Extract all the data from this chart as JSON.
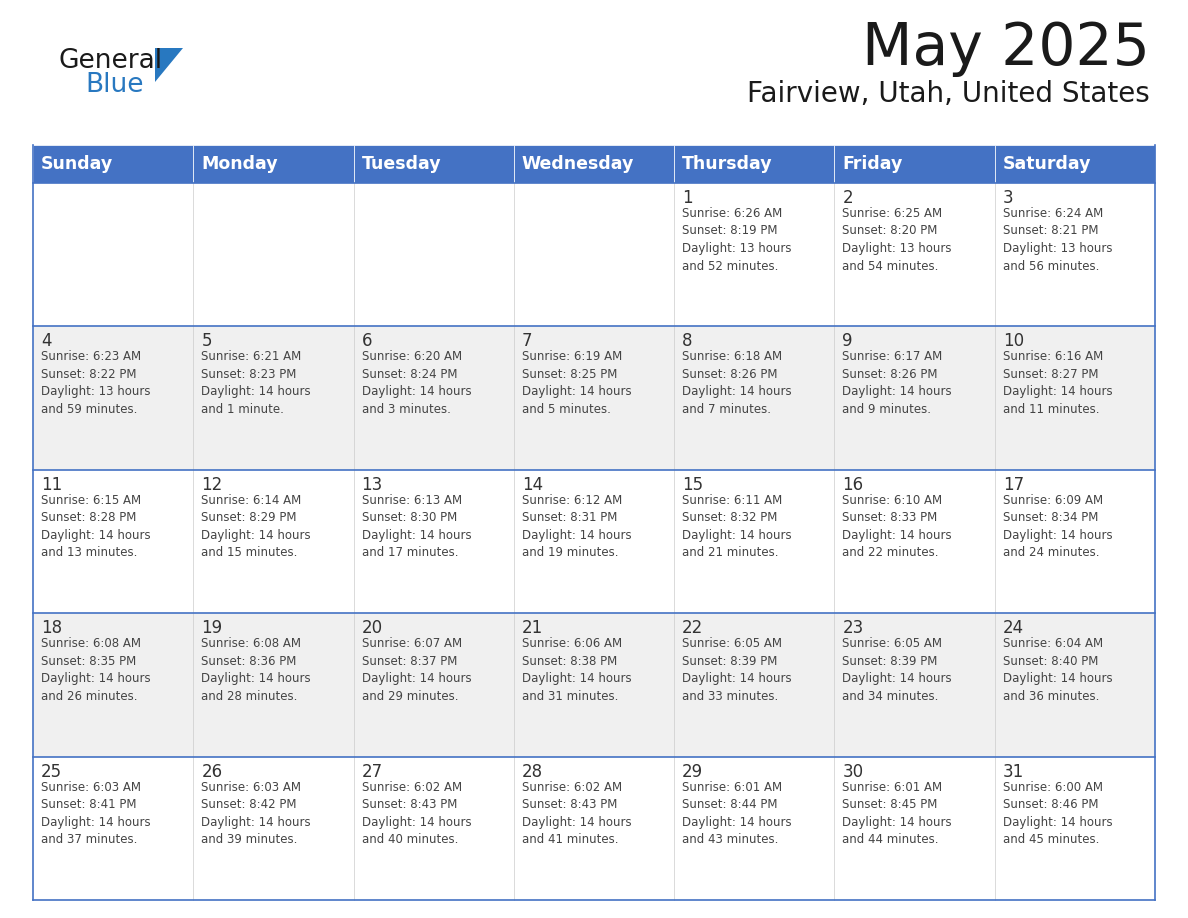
{
  "title": "May 2025",
  "subtitle": "Fairview, Utah, United States",
  "header_bg": "#4472C4",
  "header_text_color": "#FFFFFF",
  "cell_bg_white": "#FFFFFF",
  "cell_bg_gray": "#F0F0F0",
  "day_number_color": "#333333",
  "cell_text_color": "#444444",
  "border_color": "#4472C4",
  "row_divider_color": "#4472C4",
  "days_of_week": [
    "Sunday",
    "Monday",
    "Tuesday",
    "Wednesday",
    "Thursday",
    "Friday",
    "Saturday"
  ],
  "weeks": [
    [
      {
        "day": "",
        "info": ""
      },
      {
        "day": "",
        "info": ""
      },
      {
        "day": "",
        "info": ""
      },
      {
        "day": "",
        "info": ""
      },
      {
        "day": "1",
        "info": "Sunrise: 6:26 AM\nSunset: 8:19 PM\nDaylight: 13 hours\nand 52 minutes."
      },
      {
        "day": "2",
        "info": "Sunrise: 6:25 AM\nSunset: 8:20 PM\nDaylight: 13 hours\nand 54 minutes."
      },
      {
        "day": "3",
        "info": "Sunrise: 6:24 AM\nSunset: 8:21 PM\nDaylight: 13 hours\nand 56 minutes."
      }
    ],
    [
      {
        "day": "4",
        "info": "Sunrise: 6:23 AM\nSunset: 8:22 PM\nDaylight: 13 hours\nand 59 minutes."
      },
      {
        "day": "5",
        "info": "Sunrise: 6:21 AM\nSunset: 8:23 PM\nDaylight: 14 hours\nand 1 minute."
      },
      {
        "day": "6",
        "info": "Sunrise: 6:20 AM\nSunset: 8:24 PM\nDaylight: 14 hours\nand 3 minutes."
      },
      {
        "day": "7",
        "info": "Sunrise: 6:19 AM\nSunset: 8:25 PM\nDaylight: 14 hours\nand 5 minutes."
      },
      {
        "day": "8",
        "info": "Sunrise: 6:18 AM\nSunset: 8:26 PM\nDaylight: 14 hours\nand 7 minutes."
      },
      {
        "day": "9",
        "info": "Sunrise: 6:17 AM\nSunset: 8:26 PM\nDaylight: 14 hours\nand 9 minutes."
      },
      {
        "day": "10",
        "info": "Sunrise: 6:16 AM\nSunset: 8:27 PM\nDaylight: 14 hours\nand 11 minutes."
      }
    ],
    [
      {
        "day": "11",
        "info": "Sunrise: 6:15 AM\nSunset: 8:28 PM\nDaylight: 14 hours\nand 13 minutes."
      },
      {
        "day": "12",
        "info": "Sunrise: 6:14 AM\nSunset: 8:29 PM\nDaylight: 14 hours\nand 15 minutes."
      },
      {
        "day": "13",
        "info": "Sunrise: 6:13 AM\nSunset: 8:30 PM\nDaylight: 14 hours\nand 17 minutes."
      },
      {
        "day": "14",
        "info": "Sunrise: 6:12 AM\nSunset: 8:31 PM\nDaylight: 14 hours\nand 19 minutes."
      },
      {
        "day": "15",
        "info": "Sunrise: 6:11 AM\nSunset: 8:32 PM\nDaylight: 14 hours\nand 21 minutes."
      },
      {
        "day": "16",
        "info": "Sunrise: 6:10 AM\nSunset: 8:33 PM\nDaylight: 14 hours\nand 22 minutes."
      },
      {
        "day": "17",
        "info": "Sunrise: 6:09 AM\nSunset: 8:34 PM\nDaylight: 14 hours\nand 24 minutes."
      }
    ],
    [
      {
        "day": "18",
        "info": "Sunrise: 6:08 AM\nSunset: 8:35 PM\nDaylight: 14 hours\nand 26 minutes."
      },
      {
        "day": "19",
        "info": "Sunrise: 6:08 AM\nSunset: 8:36 PM\nDaylight: 14 hours\nand 28 minutes."
      },
      {
        "day": "20",
        "info": "Sunrise: 6:07 AM\nSunset: 8:37 PM\nDaylight: 14 hours\nand 29 minutes."
      },
      {
        "day": "21",
        "info": "Sunrise: 6:06 AM\nSunset: 8:38 PM\nDaylight: 14 hours\nand 31 minutes."
      },
      {
        "day": "22",
        "info": "Sunrise: 6:05 AM\nSunset: 8:39 PM\nDaylight: 14 hours\nand 33 minutes."
      },
      {
        "day": "23",
        "info": "Sunrise: 6:05 AM\nSunset: 8:39 PM\nDaylight: 14 hours\nand 34 minutes."
      },
      {
        "day": "24",
        "info": "Sunrise: 6:04 AM\nSunset: 8:40 PM\nDaylight: 14 hours\nand 36 minutes."
      }
    ],
    [
      {
        "day": "25",
        "info": "Sunrise: 6:03 AM\nSunset: 8:41 PM\nDaylight: 14 hours\nand 37 minutes."
      },
      {
        "day": "26",
        "info": "Sunrise: 6:03 AM\nSunset: 8:42 PM\nDaylight: 14 hours\nand 39 minutes."
      },
      {
        "day": "27",
        "info": "Sunrise: 6:02 AM\nSunset: 8:43 PM\nDaylight: 14 hours\nand 40 minutes."
      },
      {
        "day": "28",
        "info": "Sunrise: 6:02 AM\nSunset: 8:43 PM\nDaylight: 14 hours\nand 41 minutes."
      },
      {
        "day": "29",
        "info": "Sunrise: 6:01 AM\nSunset: 8:44 PM\nDaylight: 14 hours\nand 43 minutes."
      },
      {
        "day": "30",
        "info": "Sunrise: 6:01 AM\nSunset: 8:45 PM\nDaylight: 14 hours\nand 44 minutes."
      },
      {
        "day": "31",
        "info": "Sunrise: 6:00 AM\nSunset: 8:46 PM\nDaylight: 14 hours\nand 45 minutes."
      }
    ]
  ],
  "logo_general_color": "#1a1a1a",
  "logo_blue_color": "#2878C0",
  "logo_triangle_color": "#2878C0",
  "fig_width": 11.88,
  "fig_height": 9.18,
  "dpi": 100
}
